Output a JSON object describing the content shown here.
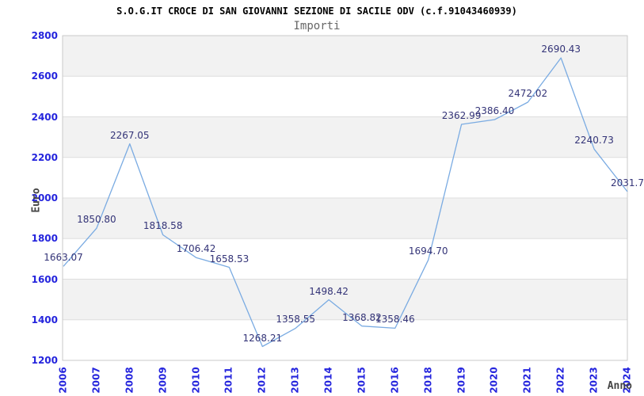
{
  "chart_data": {
    "type": "line",
    "title": "S.O.G.IT CROCE DI SAN GIOVANNI SEZIONE DI SACILE ODV (c.f.91043460939)",
    "subtitle": "Importi",
    "xlabel": "Anno",
    "ylabel": "Euro",
    "categories": [
      "2006",
      "2007",
      "2008",
      "2009",
      "2010",
      "2011",
      "2012",
      "2013",
      "2014",
      "2015",
      "2016",
      "2018",
      "2019",
      "2020",
      "2021",
      "2022",
      "2023",
      "2024"
    ],
    "values": [
      1663.07,
      1850.8,
      2267.05,
      1818.58,
      1706.42,
      1658.53,
      1268.21,
      1358.55,
      1498.42,
      1368.82,
      1358.46,
      1694.7,
      2362.99,
      2386.4,
      2472.02,
      2690.43,
      2240.73,
      2031.7
    ],
    "point_labels": [
      "1663.07",
      "1850.80",
      "2267.05",
      "1818.58",
      "1706.42",
      "1658.53",
      "1268.21",
      "1358.55",
      "1498.42",
      "1368.82",
      "1358.46",
      "1694.70",
      "2362.99",
      "2386.40",
      "2472.02",
      "2690.43",
      "2240.73",
      "2031.7"
    ],
    "ylim": [
      1200,
      2800
    ],
    "ytick_step": 200,
    "yticks": [
      2800,
      2600,
      2400,
      2200,
      2000,
      1800,
      1600,
      1400,
      1200
    ],
    "grid": "horizontal gridlines with alternating shaded bands",
    "legend": "none",
    "colors": {
      "line": "#7aabe2",
      "tick_label": "#2424dd",
      "point_label": "#333377",
      "band_fill": "#f2f2f2",
      "gridline": "#dedede",
      "plot_border": "#c9c9c9",
      "axis_title": "#444444",
      "title": "#000000",
      "subtitle": "#666666",
      "background": "#ffffff"
    }
  }
}
